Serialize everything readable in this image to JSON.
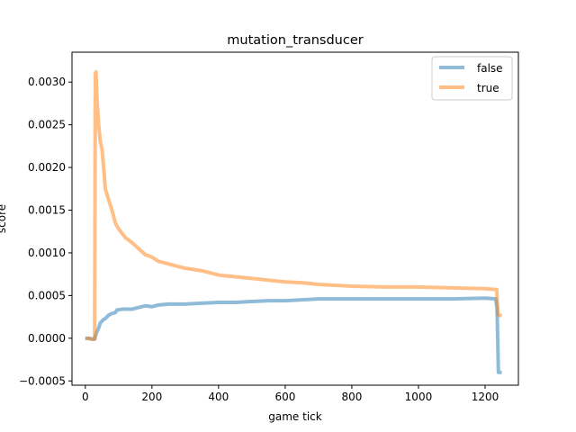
{
  "chart_data": {
    "type": "line",
    "title": "mutation_transducer",
    "xlabel": "game tick",
    "ylabel": "score",
    "xlim": [
      -40,
      1300
    ],
    "ylim": [
      -0.00055,
      0.00335
    ],
    "xticks": [
      0,
      200,
      400,
      600,
      800,
      1000,
      1200
    ],
    "xtick_labels": [
      "0",
      "200",
      "400",
      "600",
      "800",
      "1000",
      "1200"
    ],
    "yticks": [
      -0.0005,
      0.0,
      0.0005,
      0.001,
      0.0015,
      0.002,
      0.0025,
      0.003
    ],
    "ytick_labels": [
      "−0.0005",
      "0.0000",
      "0.0005",
      "0.0010",
      "0.0015",
      "0.0020",
      "0.0025",
      "0.0030"
    ],
    "grid": false,
    "legend_position": "top-right",
    "series": [
      {
        "name": "false",
        "color": "#1f77b4",
        "points": [
          [
            0,
            0.0
          ],
          [
            10,
            0.0
          ],
          [
            20,
            -1e-05
          ],
          [
            28,
            -1e-05
          ],
          [
            32,
            5e-05
          ],
          [
            40,
            0.00012
          ],
          [
            45,
            0.00018
          ],
          [
            55,
            0.00022
          ],
          [
            60,
            0.00023
          ],
          [
            70,
            0.00027
          ],
          [
            80,
            0.00029
          ],
          [
            90,
            0.0003
          ],
          [
            95,
            0.00033
          ],
          [
            110,
            0.00034
          ],
          [
            125,
            0.00034
          ],
          [
            140,
            0.00034
          ],
          [
            150,
            0.00035
          ],
          [
            180,
            0.00038
          ],
          [
            200,
            0.00037
          ],
          [
            220,
            0.00039
          ],
          [
            250,
            0.0004
          ],
          [
            300,
            0.0004
          ],
          [
            350,
            0.00041
          ],
          [
            400,
            0.00042
          ],
          [
            450,
            0.00042
          ],
          [
            500,
            0.00043
          ],
          [
            550,
            0.00044
          ],
          [
            600,
            0.00044
          ],
          [
            650,
            0.00045
          ],
          [
            700,
            0.00046
          ],
          [
            800,
            0.00046
          ],
          [
            900,
            0.00046
          ],
          [
            1000,
            0.00046
          ],
          [
            1100,
            0.00046
          ],
          [
            1200,
            0.00047
          ],
          [
            1232,
            0.00046
          ],
          [
            1236,
            0.00035
          ],
          [
            1240,
            -0.0004
          ],
          [
            1250,
            -0.0004
          ]
        ]
      },
      {
        "name": "true",
        "color": "#ff7f0e",
        "points": [
          [
            0,
            0.0
          ],
          [
            20,
            -1e-05
          ],
          [
            28,
            -1e-05
          ],
          [
            30,
            0.0031
          ],
          [
            32,
            0.00312
          ],
          [
            35,
            0.0028
          ],
          [
            40,
            0.0025
          ],
          [
            45,
            0.0023
          ],
          [
            50,
            0.00222
          ],
          [
            55,
            0.002
          ],
          [
            60,
            0.00175
          ],
          [
            70,
            0.00162
          ],
          [
            80,
            0.0015
          ],
          [
            90,
            0.00135
          ],
          [
            100,
            0.00128
          ],
          [
            120,
            0.00118
          ],
          [
            140,
            0.00112
          ],
          [
            160,
            0.00105
          ],
          [
            180,
            0.00098
          ],
          [
            200,
            0.00095
          ],
          [
            220,
            0.0009
          ],
          [
            250,
            0.00087
          ],
          [
            280,
            0.00084
          ],
          [
            300,
            0.00082
          ],
          [
            350,
            0.00079
          ],
          [
            400,
            0.00074
          ],
          [
            450,
            0.00072
          ],
          [
            500,
            0.0007
          ],
          [
            550,
            0.00068
          ],
          [
            600,
            0.00066
          ],
          [
            650,
            0.00065
          ],
          [
            700,
            0.00063
          ],
          [
            750,
            0.00062
          ],
          [
            800,
            0.00061
          ],
          [
            900,
            0.0006
          ],
          [
            1000,
            0.0006
          ],
          [
            1100,
            0.00059
          ],
          [
            1200,
            0.00058
          ],
          [
            1235,
            0.00057
          ],
          [
            1238,
            0.00028
          ],
          [
            1250,
            0.00026
          ]
        ]
      }
    ]
  }
}
